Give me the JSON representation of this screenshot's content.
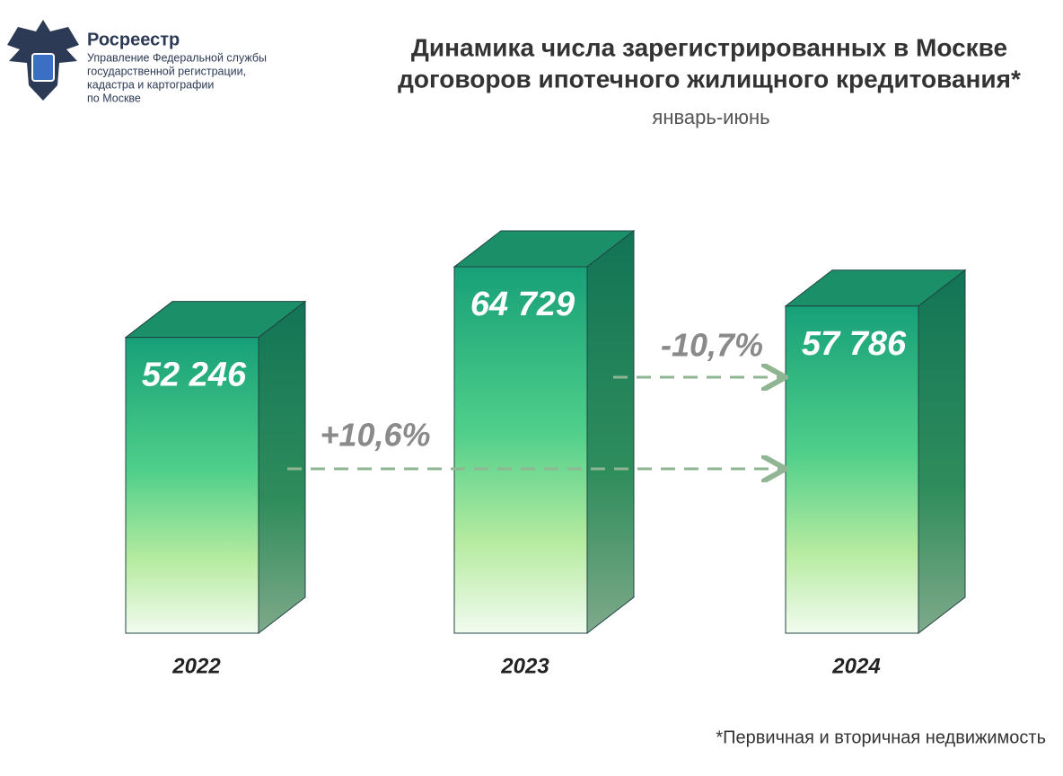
{
  "chart_data": {
    "type": "bar",
    "title": [
      "Динамика числа зарегистрированных в Москве",
      "договоров ипотечного жилищного кредитования*"
    ],
    "subtitle": "январь-июнь",
    "footnote": "*Первичная и вторичная недвижимость",
    "logo_name": "Росреестр",
    "logo_lines": [
      "Управление Федеральной службы",
      "государственной регистрации,",
      "кадастра и картографии",
      "по Москве"
    ],
    "categories": [
      "2022",
      "2023",
      "2024"
    ],
    "values": [
      52246,
      64729,
      57786
    ],
    "value_labels": [
      "52 246",
      "64 729",
      "57 786"
    ],
    "color": "#1fa37a",
    "annotations": [
      "+10,6%",
      "-10,7%"
    ]
  }
}
